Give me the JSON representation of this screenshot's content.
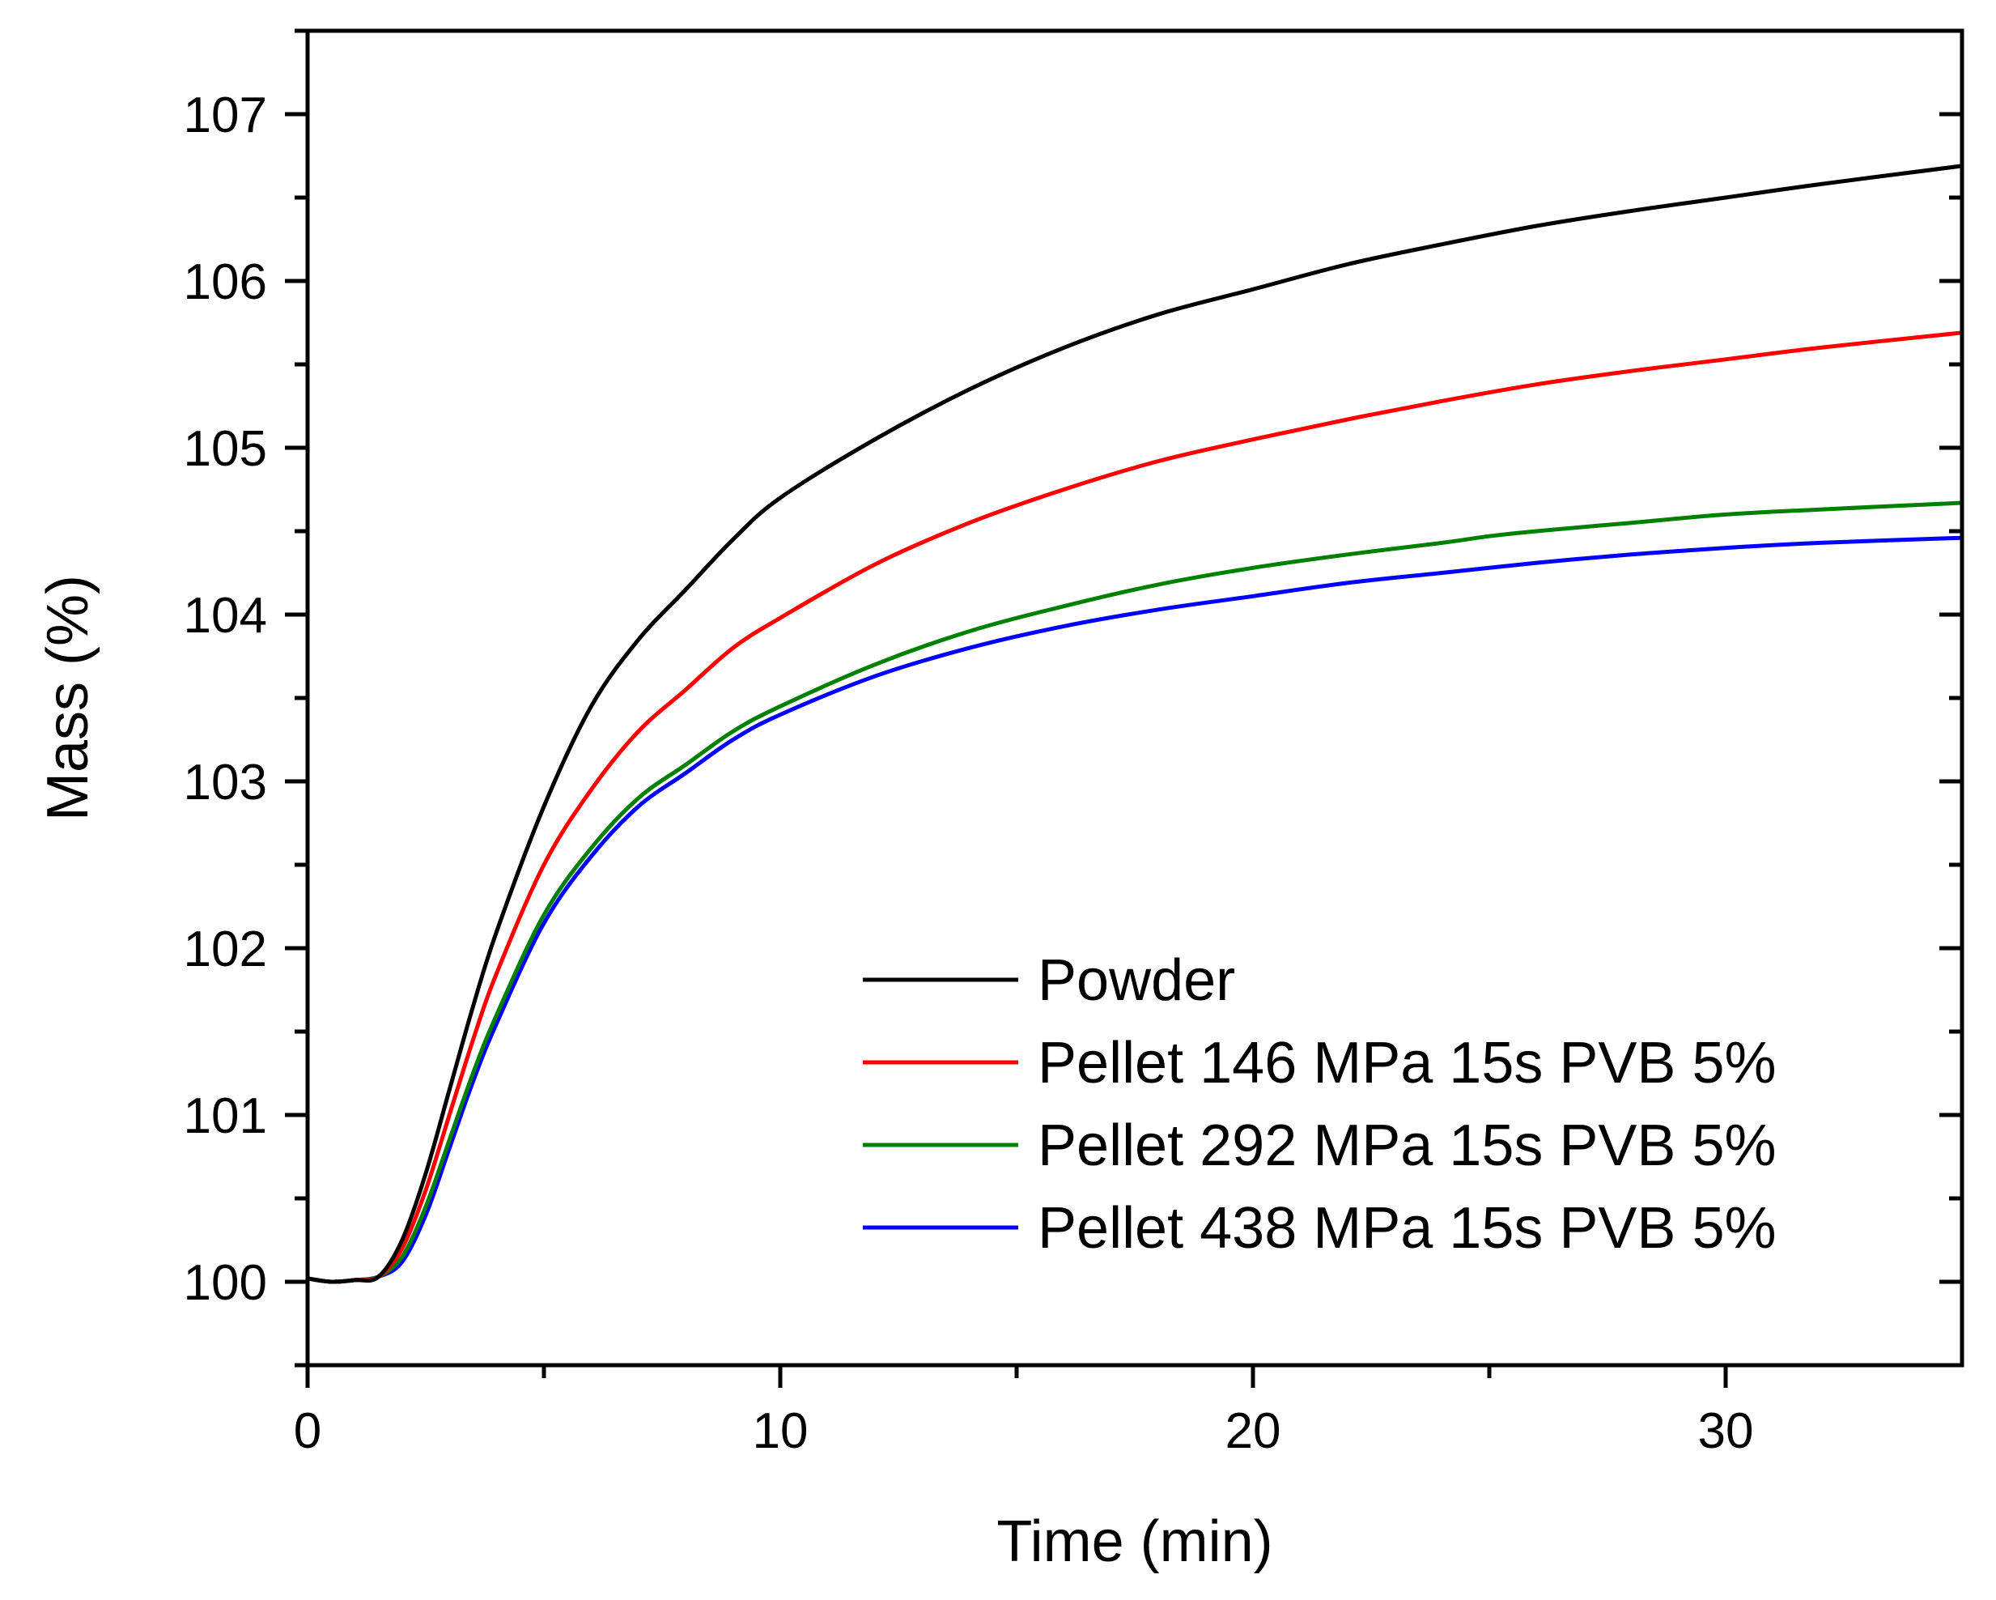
{
  "chart_data": {
    "type": "line",
    "title": "",
    "xlabel": "Time (min)",
    "ylabel": "Mass (%)",
    "xlim": [
      0,
      35
    ],
    "ylim": [
      99.5,
      107.5
    ],
    "xticks": [
      0,
      10,
      20,
      30
    ],
    "yticks": [
      100,
      101,
      102,
      103,
      104,
      105,
      106,
      107
    ],
    "xtick_labels": [
      "0",
      "10",
      "20",
      "30"
    ],
    "ytick_labels": [
      "100",
      "101",
      "102",
      "103",
      "104",
      "105",
      "106",
      "107"
    ],
    "grid": false,
    "legend_position": "bottom-right",
    "series": [
      {
        "name": "Powder",
        "color": "#000000",
        "x": [
          0,
          0.5,
          1,
          1.5,
          2,
          2.5,
          3,
          3.5,
          4,
          5,
          6,
          7,
          8,
          9,
          10,
          12,
          14,
          16,
          18,
          20,
          22,
          24,
          26,
          28,
          30,
          32,
          35
        ],
        "y": [
          100.02,
          100.0,
          100.01,
          100.03,
          100.25,
          100.65,
          101.15,
          101.65,
          102.1,
          102.85,
          103.45,
          103.85,
          104.15,
          104.45,
          104.7,
          105.05,
          105.35,
          105.6,
          105.8,
          105.95,
          106.1,
          106.22,
          106.33,
          106.42,
          106.5,
          106.58,
          106.69
        ]
      },
      {
        "name": "Pellet 146 MPa 15s PVB 5%",
        "color": "#ff0000",
        "x": [
          0,
          0.5,
          1,
          1.5,
          2,
          2.5,
          3,
          3.5,
          4,
          5,
          6,
          7,
          8,
          9,
          10,
          12,
          14,
          16,
          18,
          20,
          22,
          24,
          26,
          28,
          30,
          32,
          35
        ],
        "y": [
          100.02,
          100.0,
          100.01,
          100.03,
          100.2,
          100.55,
          101.0,
          101.45,
          101.85,
          102.5,
          102.95,
          103.3,
          103.55,
          103.8,
          103.98,
          104.3,
          104.55,
          104.75,
          104.92,
          105.05,
          105.17,
          105.28,
          105.38,
          105.46,
          105.53,
          105.6,
          105.69
        ]
      },
      {
        "name": "Pellet 292 MPa 15s PVB 5%",
        "color": "#008000",
        "x": [
          0,
          0.5,
          1,
          1.5,
          2,
          2.5,
          3,
          3.5,
          4,
          5,
          6,
          7,
          8,
          9,
          10,
          12,
          14,
          16,
          18,
          20,
          22,
          24,
          25,
          26,
          28,
          30,
          32,
          35
        ],
        "y": [
          100.02,
          100.0,
          100.01,
          100.03,
          100.15,
          100.45,
          100.85,
          101.25,
          101.6,
          102.2,
          102.6,
          102.9,
          103.1,
          103.3,
          103.45,
          103.7,
          103.9,
          104.05,
          104.18,
          104.28,
          104.36,
          104.43,
          104.47,
          104.5,
          104.55,
          104.6,
          104.63,
          104.67
        ]
      },
      {
        "name": "Pellet 438 MPa 15s PVB 5%",
        "color": "#0000ff",
        "x": [
          0,
          0.5,
          1,
          1.5,
          2,
          2.5,
          3,
          3.5,
          4,
          5,
          6,
          7,
          8,
          9,
          10,
          12,
          14,
          16,
          18,
          20,
          22,
          24,
          26,
          28,
          30,
          32,
          35
        ],
        "y": [
          100.02,
          100.0,
          100.01,
          100.03,
          100.12,
          100.4,
          100.8,
          101.2,
          101.55,
          102.15,
          102.55,
          102.85,
          103.05,
          103.25,
          103.4,
          103.63,
          103.8,
          103.93,
          104.03,
          104.11,
          104.19,
          104.25,
          104.31,
          104.36,
          104.4,
          104.43,
          104.46
        ]
      }
    ]
  }
}
